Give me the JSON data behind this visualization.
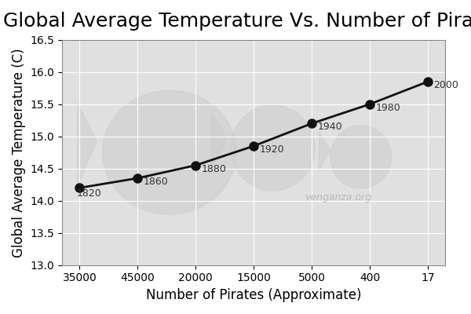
{
  "title": "Global Average Temperature Vs. Number of Pirates",
  "xlabel": "Number of Pirates (Approximate)",
  "ylabel": "Global Average Temperature (C)",
  "x_values": [
    35000,
    45000,
    20000,
    15000,
    5000,
    400,
    17
  ],
  "y_values": [
    14.2,
    14.35,
    14.55,
    14.85,
    15.2,
    15.5,
    15.85
  ],
  "x_tick_labels": [
    "35000",
    "45000",
    "20000",
    "15000",
    "5000",
    "400",
    "17"
  ],
  "point_labels": [
    "1820",
    "1860",
    "1880",
    "1920",
    "1940",
    "1980",
    "2000"
  ],
  "ylim": [
    13,
    16.5
  ],
  "yticks": [
    13,
    13.5,
    14,
    14.5,
    15,
    15.5,
    16,
    16.5
  ],
  "background_color": "#e0e0e0",
  "line_color": "#111111",
  "marker_color": "#111111",
  "watermark_text": "venganza.org",
  "title_fontsize": 18,
  "axis_label_fontsize": 12,
  "tick_fontsize": 10,
  "label_fontsize": 9
}
